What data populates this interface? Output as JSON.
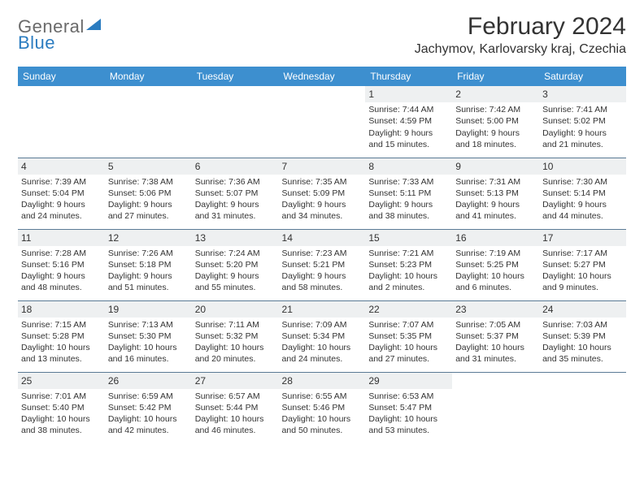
{
  "brand": {
    "word1": "General",
    "word2": "Blue",
    "logo_fill": "#2b7cc0",
    "text_gray": "#6a6a6a"
  },
  "title": "February 2024",
  "location": "Jachymov, Karlovarsky kraj, Czechia",
  "colors": {
    "header_bg": "#3d8fcf",
    "header_fg": "#ffffff",
    "band_bg": "#eef0f1",
    "rule": "#5a7a95",
    "text": "#333333",
    "page_bg": "#ffffff"
  },
  "day_headers": [
    "Sunday",
    "Monday",
    "Tuesday",
    "Wednesday",
    "Thursday",
    "Friday",
    "Saturday"
  ],
  "weeks": [
    [
      null,
      null,
      null,
      null,
      {
        "n": "1",
        "sr": "Sunrise: 7:44 AM",
        "ss": "Sunset: 4:59 PM",
        "dl": "Daylight: 9 hours and 15 minutes."
      },
      {
        "n": "2",
        "sr": "Sunrise: 7:42 AM",
        "ss": "Sunset: 5:00 PM",
        "dl": "Daylight: 9 hours and 18 minutes."
      },
      {
        "n": "3",
        "sr": "Sunrise: 7:41 AM",
        "ss": "Sunset: 5:02 PM",
        "dl": "Daylight: 9 hours and 21 minutes."
      }
    ],
    [
      {
        "n": "4",
        "sr": "Sunrise: 7:39 AM",
        "ss": "Sunset: 5:04 PM",
        "dl": "Daylight: 9 hours and 24 minutes."
      },
      {
        "n": "5",
        "sr": "Sunrise: 7:38 AM",
        "ss": "Sunset: 5:06 PM",
        "dl": "Daylight: 9 hours and 27 minutes."
      },
      {
        "n": "6",
        "sr": "Sunrise: 7:36 AM",
        "ss": "Sunset: 5:07 PM",
        "dl": "Daylight: 9 hours and 31 minutes."
      },
      {
        "n": "7",
        "sr": "Sunrise: 7:35 AM",
        "ss": "Sunset: 5:09 PM",
        "dl": "Daylight: 9 hours and 34 minutes."
      },
      {
        "n": "8",
        "sr": "Sunrise: 7:33 AM",
        "ss": "Sunset: 5:11 PM",
        "dl": "Daylight: 9 hours and 38 minutes."
      },
      {
        "n": "9",
        "sr": "Sunrise: 7:31 AM",
        "ss": "Sunset: 5:13 PM",
        "dl": "Daylight: 9 hours and 41 minutes."
      },
      {
        "n": "10",
        "sr": "Sunrise: 7:30 AM",
        "ss": "Sunset: 5:14 PM",
        "dl": "Daylight: 9 hours and 44 minutes."
      }
    ],
    [
      {
        "n": "11",
        "sr": "Sunrise: 7:28 AM",
        "ss": "Sunset: 5:16 PM",
        "dl": "Daylight: 9 hours and 48 minutes."
      },
      {
        "n": "12",
        "sr": "Sunrise: 7:26 AM",
        "ss": "Sunset: 5:18 PM",
        "dl": "Daylight: 9 hours and 51 minutes."
      },
      {
        "n": "13",
        "sr": "Sunrise: 7:24 AM",
        "ss": "Sunset: 5:20 PM",
        "dl": "Daylight: 9 hours and 55 minutes."
      },
      {
        "n": "14",
        "sr": "Sunrise: 7:23 AM",
        "ss": "Sunset: 5:21 PM",
        "dl": "Daylight: 9 hours and 58 minutes."
      },
      {
        "n": "15",
        "sr": "Sunrise: 7:21 AM",
        "ss": "Sunset: 5:23 PM",
        "dl": "Daylight: 10 hours and 2 minutes."
      },
      {
        "n": "16",
        "sr": "Sunrise: 7:19 AM",
        "ss": "Sunset: 5:25 PM",
        "dl": "Daylight: 10 hours and 6 minutes."
      },
      {
        "n": "17",
        "sr": "Sunrise: 7:17 AM",
        "ss": "Sunset: 5:27 PM",
        "dl": "Daylight: 10 hours and 9 minutes."
      }
    ],
    [
      {
        "n": "18",
        "sr": "Sunrise: 7:15 AM",
        "ss": "Sunset: 5:28 PM",
        "dl": "Daylight: 10 hours and 13 minutes."
      },
      {
        "n": "19",
        "sr": "Sunrise: 7:13 AM",
        "ss": "Sunset: 5:30 PM",
        "dl": "Daylight: 10 hours and 16 minutes."
      },
      {
        "n": "20",
        "sr": "Sunrise: 7:11 AM",
        "ss": "Sunset: 5:32 PM",
        "dl": "Daylight: 10 hours and 20 minutes."
      },
      {
        "n": "21",
        "sr": "Sunrise: 7:09 AM",
        "ss": "Sunset: 5:34 PM",
        "dl": "Daylight: 10 hours and 24 minutes."
      },
      {
        "n": "22",
        "sr": "Sunrise: 7:07 AM",
        "ss": "Sunset: 5:35 PM",
        "dl": "Daylight: 10 hours and 27 minutes."
      },
      {
        "n": "23",
        "sr": "Sunrise: 7:05 AM",
        "ss": "Sunset: 5:37 PM",
        "dl": "Daylight: 10 hours and 31 minutes."
      },
      {
        "n": "24",
        "sr": "Sunrise: 7:03 AM",
        "ss": "Sunset: 5:39 PM",
        "dl": "Daylight: 10 hours and 35 minutes."
      }
    ],
    [
      {
        "n": "25",
        "sr": "Sunrise: 7:01 AM",
        "ss": "Sunset: 5:40 PM",
        "dl": "Daylight: 10 hours and 38 minutes."
      },
      {
        "n": "26",
        "sr": "Sunrise: 6:59 AM",
        "ss": "Sunset: 5:42 PM",
        "dl": "Daylight: 10 hours and 42 minutes."
      },
      {
        "n": "27",
        "sr": "Sunrise: 6:57 AM",
        "ss": "Sunset: 5:44 PM",
        "dl": "Daylight: 10 hours and 46 minutes."
      },
      {
        "n": "28",
        "sr": "Sunrise: 6:55 AM",
        "ss": "Sunset: 5:46 PM",
        "dl": "Daylight: 10 hours and 50 minutes."
      },
      {
        "n": "29",
        "sr": "Sunrise: 6:53 AM",
        "ss": "Sunset: 5:47 PM",
        "dl": "Daylight: 10 hours and 53 minutes."
      },
      null,
      null
    ]
  ]
}
